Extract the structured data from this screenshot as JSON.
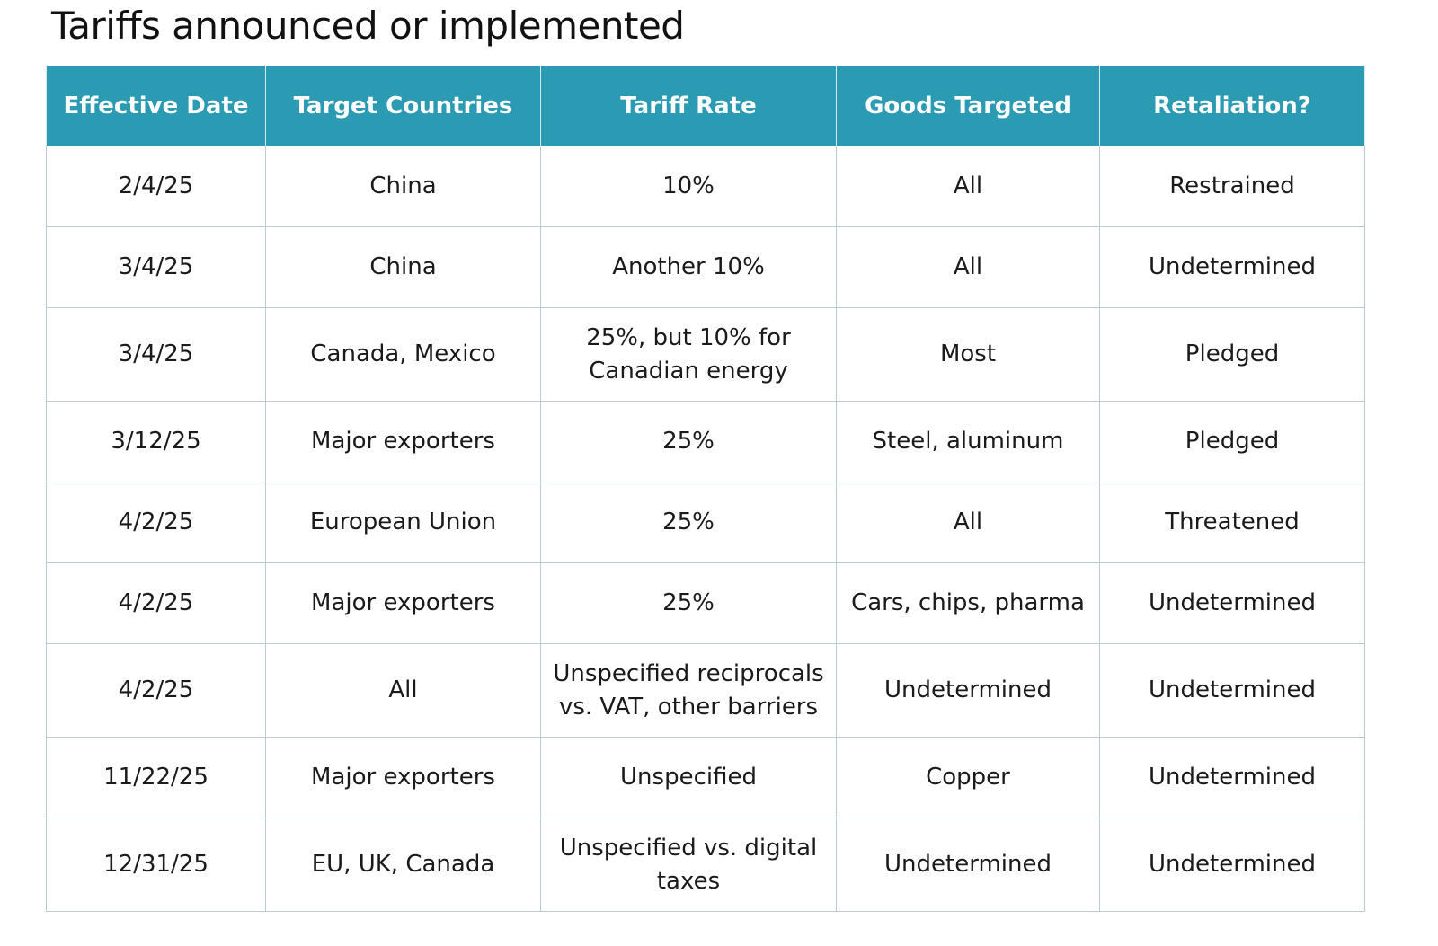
{
  "title": "Tariffs announced or implemented",
  "header_color": "#2b9ab3",
  "columns": [
    "Effective Date",
    "Target Countries",
    "Tariff Rate",
    "Goods Targeted",
    "Retaliation?"
  ],
  "rows": [
    [
      "2/4/25",
      "China",
      "10%",
      "All",
      "Restrained"
    ],
    [
      "3/4/25",
      "China",
      "Another 10%",
      "All",
      "Undetermined"
    ],
    [
      "3/4/25",
      "Canada, Mexico",
      "25%, but 10% for Canadian energy",
      "Most",
      "Pledged"
    ],
    [
      "3/12/25",
      "Major exporters",
      "25%",
      "Steel, aluminum",
      "Pledged"
    ],
    [
      "4/2/25",
      "European Union",
      "25%",
      "All",
      "Threatened"
    ],
    [
      "4/2/25",
      "Major exporters",
      "25%",
      "Cars, chips, pharma",
      "Undetermined"
    ],
    [
      "4/2/25",
      "All",
      "Unspecified reciprocals vs. VAT, other barriers",
      "Undetermined",
      "Undetermined"
    ],
    [
      "11/22/25",
      "Major exporters",
      "Unspecified",
      "Copper",
      "Undetermined"
    ],
    [
      "12/31/25",
      "EU, UK, Canada",
      "Unspecified vs. digital taxes",
      "Undetermined",
      "Undetermined"
    ]
  ]
}
